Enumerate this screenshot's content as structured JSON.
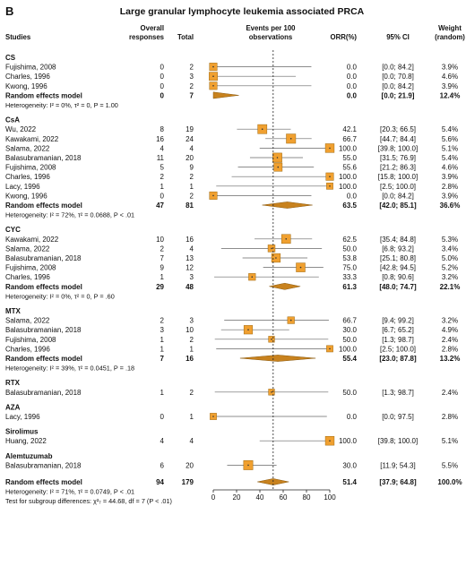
{
  "panel_label": "B",
  "chart_data": {
    "type": "forest",
    "title": "Large granular lymphocyte leukemia associated PRCA",
    "columns": {
      "studies": "Studies",
      "overall_responses": "Overall responses",
      "total": "Total",
      "events": "Events per 100 observations",
      "orr": "ORR(%)",
      "ci": "95% CI",
      "weight": "Weight (random)"
    },
    "xlim": [
      0,
      100
    ],
    "xticks": [
      0,
      20,
      40,
      60,
      80,
      100
    ],
    "reference_line": 51.4,
    "groups": [
      {
        "name": "CS",
        "studies": [
          {
            "study": "Fujishima, 2008",
            "events": "0",
            "total": "2",
            "orr": "0.0",
            "ci": "[0.0; 84.2]",
            "weight": "3.9%",
            "est": 0.0,
            "lo": 0.0,
            "hi": 84.2
          },
          {
            "study": "Charles, 1996",
            "events": "0",
            "total": "3",
            "orr": "0.0",
            "ci": "[0.0; 70.8]",
            "weight": "4.6%",
            "est": 0.0,
            "lo": 0.0,
            "hi": 70.8
          },
          {
            "study": "Kwong, 1996",
            "events": "0",
            "total": "2",
            "orr": "0.0",
            "ci": "[0.0; 84.2]",
            "weight": "3.9%",
            "est": 0.0,
            "lo": 0.0,
            "hi": 84.2
          }
        ],
        "summary": {
          "label": "Random effects model",
          "events": "0",
          "total": "7",
          "orr": "0.0",
          "ci": "[0.0; 21.9]",
          "weight": "12.4%",
          "est": 0.0,
          "lo": 0.0,
          "hi": 21.9
        },
        "heterogeneity": "Heterogeneity: I² = 0%, τ² = 0, P = 1.00"
      },
      {
        "name": "CsA",
        "studies": [
          {
            "study": "Wu, 2022",
            "events": "8",
            "total": "19",
            "orr": "42.1",
            "ci": "[20.3; 66.5]",
            "weight": "5.4%",
            "est": 42.1,
            "lo": 20.3,
            "hi": 66.5
          },
          {
            "study": "Kawakami, 2022",
            "events": "16",
            "total": "24",
            "orr": "66.7",
            "ci": "[44.7; 84.4]",
            "weight": "5.6%",
            "est": 66.7,
            "lo": 44.7,
            "hi": 84.4
          },
          {
            "study": "Salama, 2022",
            "events": "4",
            "total": "4",
            "orr": "100.0",
            "ci": "[39.8; 100.0]",
            "weight": "5.1%",
            "est": 100.0,
            "lo": 39.8,
            "hi": 100.0
          },
          {
            "study": "Balasubramanian, 2018",
            "events": "11",
            "total": "20",
            "orr": "55.0",
            "ci": "[31.5; 76.9]",
            "weight": "5.4%",
            "est": 55.0,
            "lo": 31.5,
            "hi": 76.9
          },
          {
            "study": "Fujishima, 2008",
            "events": "5",
            "total": "9",
            "orr": "55.6",
            "ci": "[21.2; 86.3]",
            "weight": "4.6%",
            "est": 55.6,
            "lo": 21.2,
            "hi": 86.3
          },
          {
            "study": "Charles, 1996",
            "events": "2",
            "total": "2",
            "orr": "100.0",
            "ci": "[15.8; 100.0]",
            "weight": "3.9%",
            "est": 100.0,
            "lo": 15.8,
            "hi": 100.0
          },
          {
            "study": "Lacy, 1996",
            "events": "1",
            "total": "1",
            "orr": "100.0",
            "ci": "[2.5; 100.0]",
            "weight": "2.8%",
            "est": 100.0,
            "lo": 2.5,
            "hi": 100.0
          },
          {
            "study": "Kwong, 1996",
            "events": "0",
            "total": "2",
            "orr": "0.0",
            "ci": "[0.0; 84.2]",
            "weight": "3.9%",
            "est": 0.0,
            "lo": 0.0,
            "hi": 84.2
          }
        ],
        "summary": {
          "label": "Random effects model",
          "events": "47",
          "total": "81",
          "orr": "63.5",
          "ci": "[42.0; 85.1]",
          "weight": "36.6%",
          "est": 63.5,
          "lo": 42.0,
          "hi": 85.1
        },
        "heterogeneity": "Heterogeneity: I² = 72%, τ² = 0.0688, P < .01"
      },
      {
        "name": "CYC",
        "studies": [
          {
            "study": "Kawakami, 2022",
            "events": "10",
            "total": "16",
            "orr": "62.5",
            "ci": "[35.4; 84.8]",
            "weight": "5.3%",
            "est": 62.5,
            "lo": 35.4,
            "hi": 84.8
          },
          {
            "study": "Salama, 2022",
            "events": "2",
            "total": "4",
            "orr": "50.0",
            "ci": "[6.8; 93.2]",
            "weight": "3.4%",
            "est": 50.0,
            "lo": 6.8,
            "hi": 93.2
          },
          {
            "study": "Balasubramanian, 2018",
            "events": "7",
            "total": "13",
            "orr": "53.8",
            "ci": "[25.1; 80.8]",
            "weight": "5.0%",
            "est": 53.8,
            "lo": 25.1,
            "hi": 80.8
          },
          {
            "study": "Fujishima, 2008",
            "events": "9",
            "total": "12",
            "orr": "75.0",
            "ci": "[42.8; 94.5]",
            "weight": "5.2%",
            "est": 75.0,
            "lo": 42.8,
            "hi": 94.5
          },
          {
            "study": "Charles, 1996",
            "events": "1",
            "total": "3",
            "orr": "33.3",
            "ci": "[0.8; 90.6]",
            "weight": "3.2%",
            "est": 33.3,
            "lo": 0.8,
            "hi": 90.6
          }
        ],
        "summary": {
          "label": "Random effects model",
          "events": "29",
          "total": "48",
          "orr": "61.3",
          "ci": "[48.0; 74.7]",
          "weight": "22.1%",
          "est": 61.3,
          "lo": 48.0,
          "hi": 74.7
        },
        "heterogeneity": "Heterogeneity: I² = 0%, τ² = 0, P = .60"
      },
      {
        "name": "MTX",
        "studies": [
          {
            "study": "Salama, 2022",
            "events": "2",
            "total": "3",
            "orr": "66.7",
            "ci": "[9.4; 99.2]",
            "weight": "3.2%",
            "est": 66.7,
            "lo": 9.4,
            "hi": 99.2
          },
          {
            "study": "Balasubramanian, 2018",
            "events": "3",
            "total": "10",
            "orr": "30.0",
            "ci": "[6.7; 65.2]",
            "weight": "4.9%",
            "est": 30.0,
            "lo": 6.7,
            "hi": 65.2
          },
          {
            "study": "Fujishima, 2008",
            "events": "1",
            "total": "2",
            "orr": "50.0",
            "ci": "[1.3; 98.7]",
            "weight": "2.4%",
            "est": 50.0,
            "lo": 1.3,
            "hi": 98.7
          },
          {
            "study": "Charles, 1996",
            "events": "1",
            "total": "1",
            "orr": "100.0",
            "ci": "[2.5; 100.0]",
            "weight": "2.8%",
            "est": 100.0,
            "lo": 2.5,
            "hi": 100.0
          }
        ],
        "summary": {
          "label": "Random effects model",
          "events": "7",
          "total": "16",
          "orr": "55.4",
          "ci": "[23.0; 87.8]",
          "weight": "13.2%",
          "est": 55.4,
          "lo": 23.0,
          "hi": 87.8
        },
        "heterogeneity": "Heterogeneity: I² = 39%, τ² = 0.0451, P = .18"
      },
      {
        "name": "RTX",
        "studies": [
          {
            "study": "Balasubramanian, 2018",
            "events": "1",
            "total": "2",
            "orr": "50.0",
            "ci": "[1.3; 98.7]",
            "weight": "2.4%",
            "est": 50.0,
            "lo": 1.3,
            "hi": 98.7
          }
        ]
      },
      {
        "name": "AZA",
        "studies": [
          {
            "study": "Lacy, 1996",
            "events": "0",
            "total": "1",
            "orr": "0.0",
            "ci": "[0.0; 97.5]",
            "weight": "2.8%",
            "est": 0.0,
            "lo": 0.0,
            "hi": 97.5
          }
        ]
      },
      {
        "name": "Sirolimus",
        "studies": [
          {
            "study": "Huang, 2022",
            "events": "4",
            "total": "4",
            "orr": "100.0",
            "ci": "[39.8; 100.0]",
            "weight": "5.1%",
            "est": 100.0,
            "lo": 39.8,
            "hi": 100.0
          }
        ]
      },
      {
        "name": "Alemtuzumab",
        "studies": [
          {
            "study": "Balasubramanian, 2018",
            "events": "6",
            "total": "20",
            "orr": "30.0",
            "ci": "[11.9; 54.3]",
            "weight": "5.5%",
            "est": 30.0,
            "lo": 11.9,
            "hi": 54.3
          }
        ]
      }
    ],
    "overall": {
      "label": "Random effects model",
      "events": "94",
      "total": "179",
      "orr": "51.4",
      "ci": "[37.9; 64.8]",
      "weight": "100.0%",
      "est": 51.4,
      "lo": 37.9,
      "hi": 64.8
    },
    "overall_heterogeneity": "Heterogeneity: I² = 71%, τ² = 0.0749, P < .01",
    "subgroup_test": "Test for subgroup differences: χ²₇ = 44.68, df = 7 (P < .01)",
    "colors": {
      "box": "#f0a030",
      "box_stroke": "#a06a10",
      "diamond": "#c8821e",
      "line": "#666666"
    }
  }
}
